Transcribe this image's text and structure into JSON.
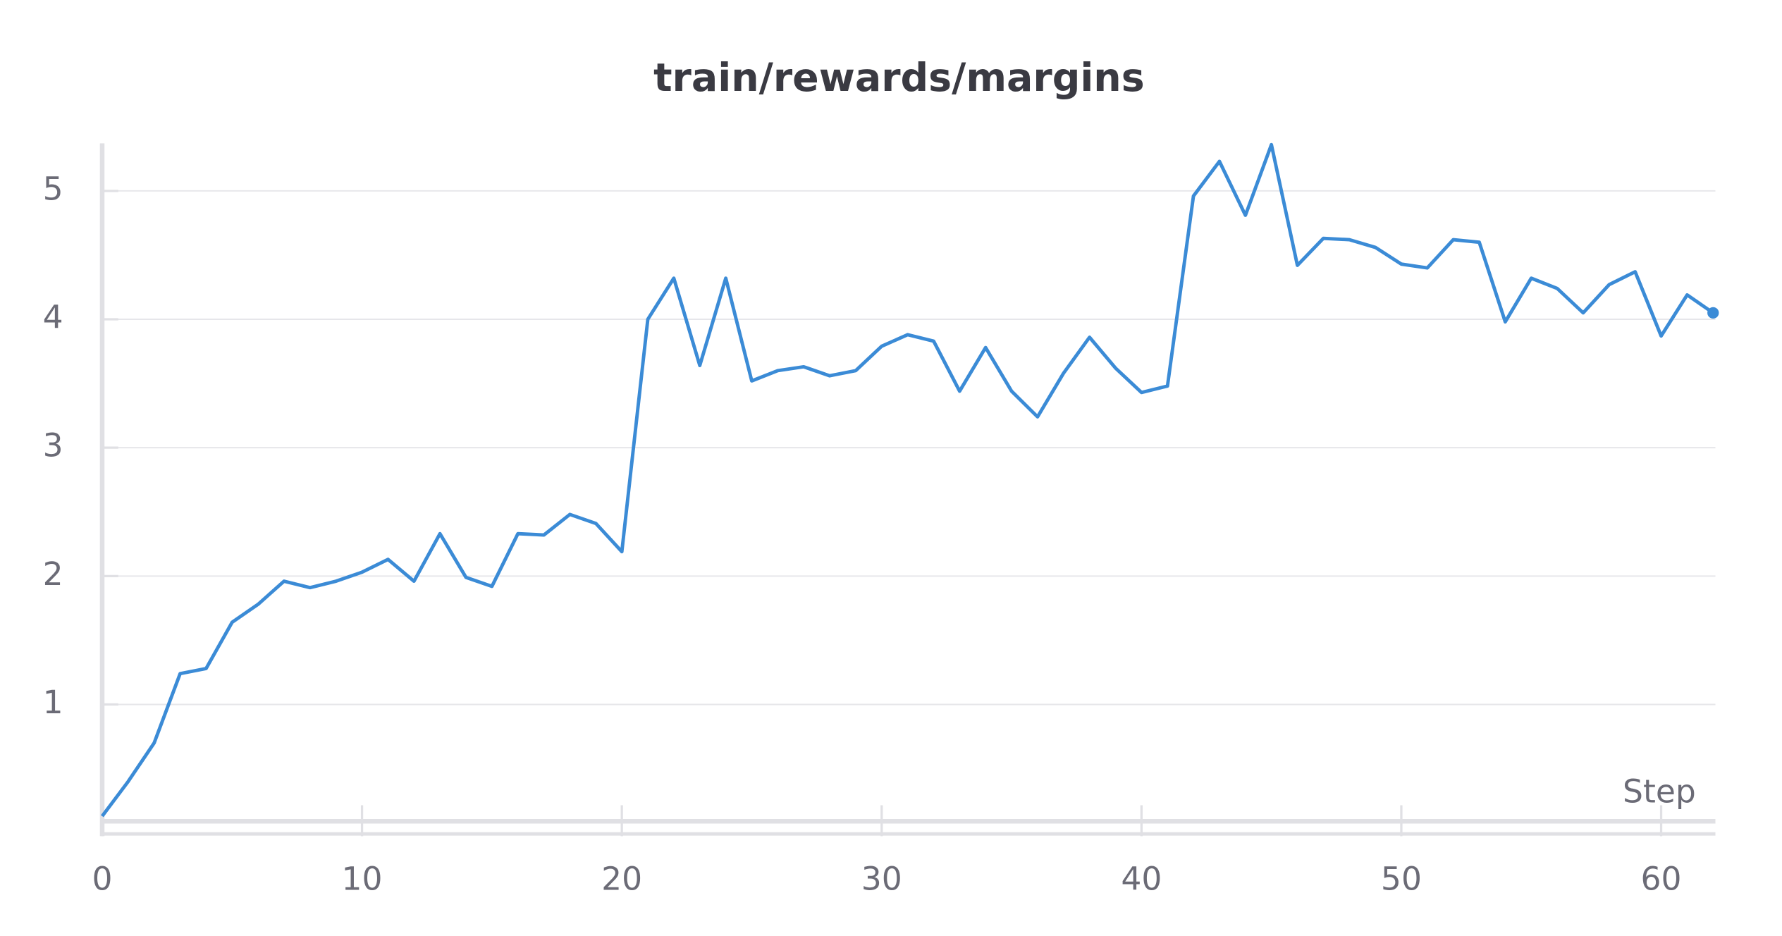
{
  "chart_data": {
    "type": "line",
    "title": "train/rewards/margins",
    "x_label": "Step",
    "x": [
      0,
      1,
      2,
      3,
      4,
      5,
      6,
      7,
      8,
      9,
      10,
      11,
      12,
      13,
      14,
      15,
      16,
      17,
      18,
      19,
      20,
      21,
      22,
      23,
      24,
      25,
      26,
      27,
      28,
      29,
      30,
      31,
      32,
      33,
      34,
      35,
      36,
      37,
      38,
      39,
      40,
      41,
      42,
      43,
      44,
      45,
      46,
      47,
      48,
      49,
      50,
      51,
      52,
      53,
      54,
      55,
      56,
      57,
      58,
      59,
      60,
      61,
      62
    ],
    "series": [
      {
        "name": "train/rewards/margins",
        "color": "#3b8bd6",
        "values": [
          0.13,
          0.4,
          0.7,
          1.24,
          1.28,
          1.64,
          1.78,
          1.96,
          1.91,
          1.96,
          2.03,
          2.13,
          1.96,
          2.33,
          1.99,
          1.92,
          2.33,
          2.32,
          2.48,
          2.41,
          2.19,
          4.0,
          4.32,
          3.64,
          4.32,
          3.52,
          3.6,
          3.63,
          3.56,
          3.6,
          3.79,
          3.88,
          3.83,
          3.44,
          3.78,
          3.44,
          3.24,
          3.58,
          3.86,
          3.62,
          3.43,
          3.48,
          4.96,
          5.23,
          4.81,
          5.36,
          4.42,
          4.63,
          4.62,
          4.56,
          4.43,
          4.4,
          4.62,
          4.6,
          3.98,
          4.32,
          4.24,
          4.05,
          4.27,
          4.37,
          3.87,
          4.19,
          4.05
        ]
      }
    ],
    "xlim": [
      0,
      62
    ],
    "xticks": [
      0,
      10,
      20,
      30,
      40,
      50,
      60
    ],
    "ylim": [
      0.09,
      5.37
    ],
    "yticks": [
      1,
      2,
      3,
      4,
      5
    ],
    "grid": true
  }
}
